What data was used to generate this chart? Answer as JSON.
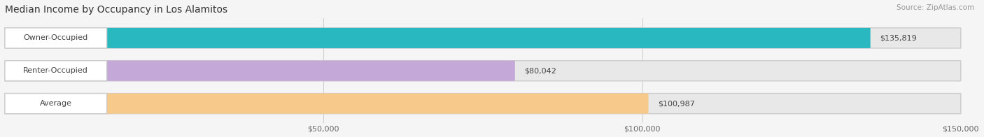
{
  "title": "Median Income by Occupancy in Los Alamitos",
  "source": "Source: ZipAtlas.com",
  "categories": [
    "Owner-Occupied",
    "Renter-Occupied",
    "Average"
  ],
  "values": [
    135819,
    80042,
    100987
  ],
  "bar_colors": [
    "#29b8c0",
    "#c4a8d8",
    "#f7c98a"
  ],
  "value_labels": [
    "$135,819",
    "$80,042",
    "$100,987"
  ],
  "xlim_max": 150000,
  "xticks": [
    0,
    50000,
    100000,
    150000
  ],
  "xtick_labels": [
    "",
    "$50,000",
    "$100,000",
    "$150,000"
  ],
  "bg_color": "#f5f5f5",
  "bar_bg_color": "#e8e8e8",
  "title_fontsize": 10,
  "label_fontsize": 8,
  "value_fontsize": 8,
  "tick_fontsize": 8,
  "source_fontsize": 7.5
}
